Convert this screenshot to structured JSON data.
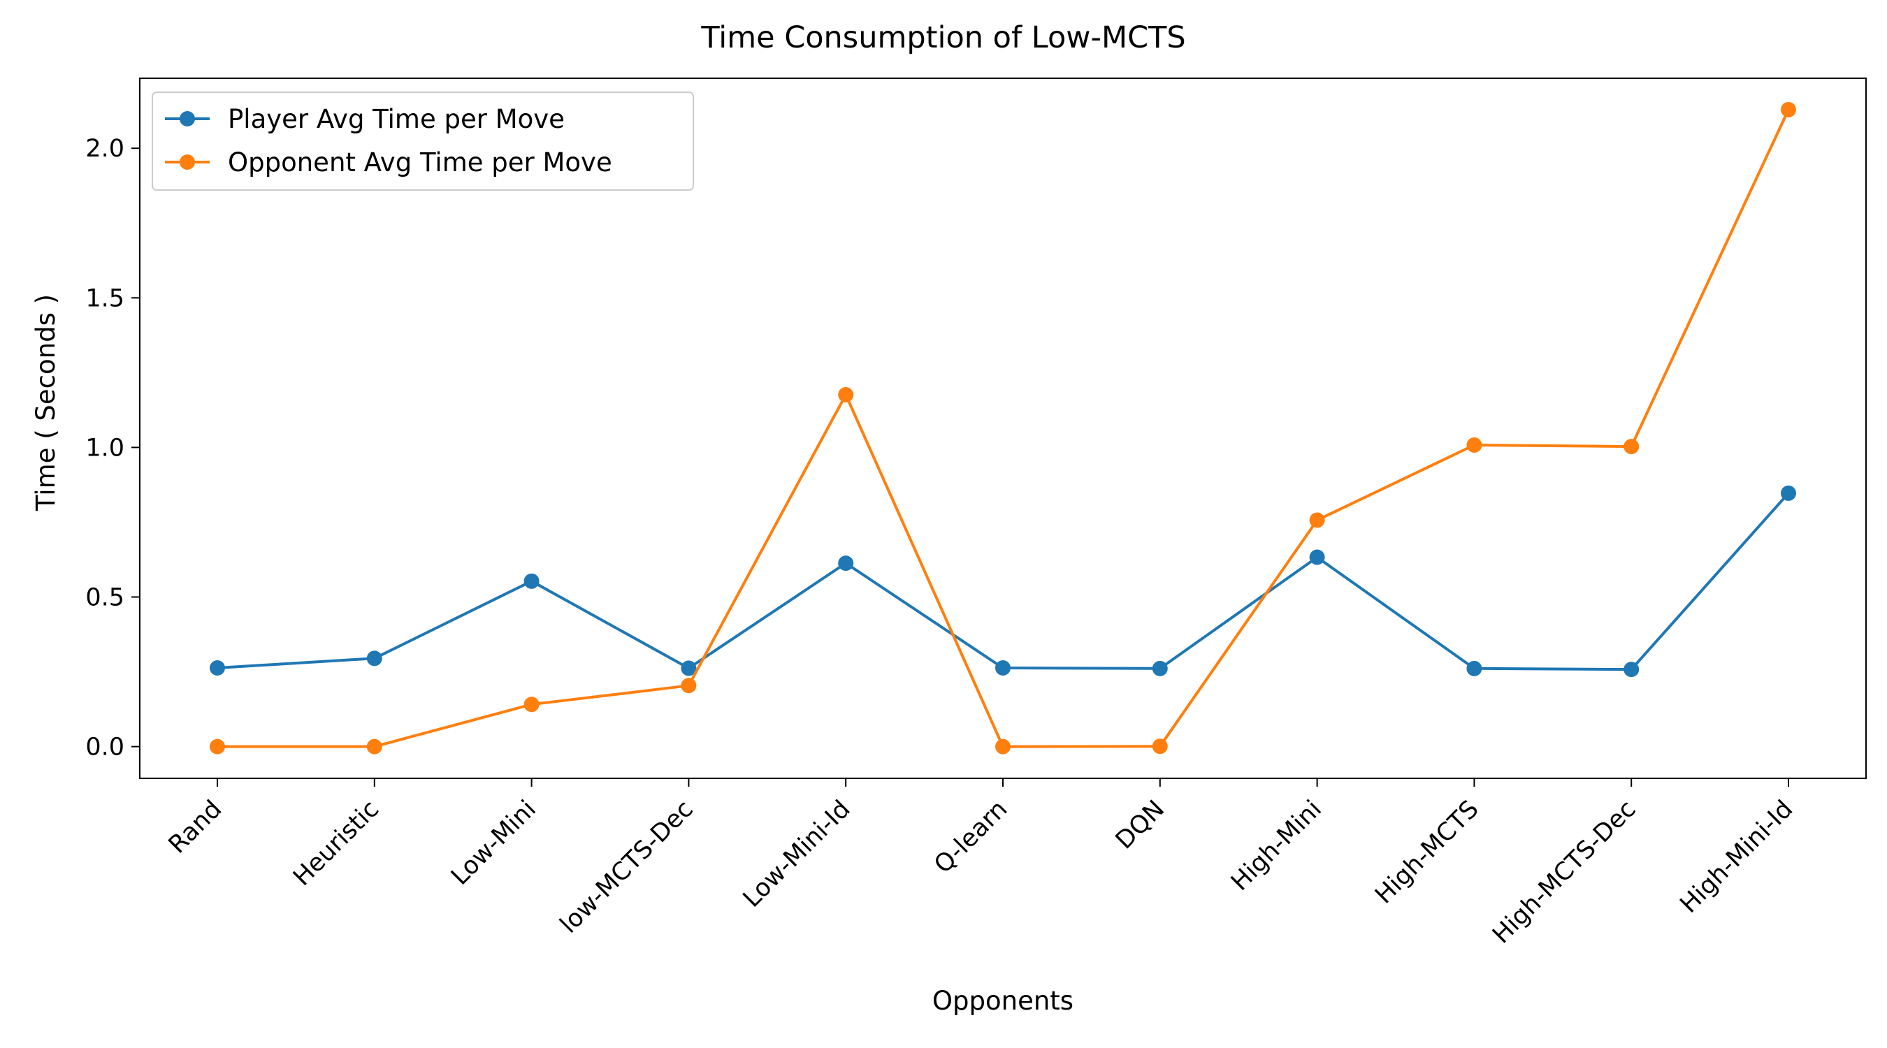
{
  "chart_data": {
    "type": "line",
    "title": "Time Consumption of Low-MCTS",
    "xlabel": "Opponents",
    "ylabel": "Time ( Seconds )",
    "categories": [
      "Rand",
      "Heuristic",
      "Low-Mini",
      "low-MCTS-Dec",
      "Low-Mini-Id",
      "Q-learn",
      "DQN",
      "High-Mini",
      "High-MCTS",
      "High-MCTS-Dec",
      "High-Mini-Id"
    ],
    "series": [
      {
        "name": "Player Avg Time per Move",
        "color": "#1f77b4",
        "values": [
          0.263,
          0.295,
          0.553,
          0.262,
          0.613,
          0.263,
          0.261,
          0.633,
          0.261,
          0.258,
          0.847
        ]
      },
      {
        "name": "Opponent Avg Time per Move",
        "color": "#ff7f0e",
        "values": [
          0.0,
          0.0,
          0.141,
          0.204,
          1.176,
          0.0,
          0.001,
          0.757,
          1.008,
          1.003,
          2.129
        ]
      }
    ],
    "ylim": [
      -0.106,
      2.234
    ],
    "yticks": [
      "0.0",
      "0.5",
      "1.0",
      "1.5",
      "2.0"
    ],
    "ytick_values": [
      0.0,
      0.5,
      1.0,
      1.5,
      2.0
    ],
    "grid": false,
    "legend_position": "upper-left"
  }
}
